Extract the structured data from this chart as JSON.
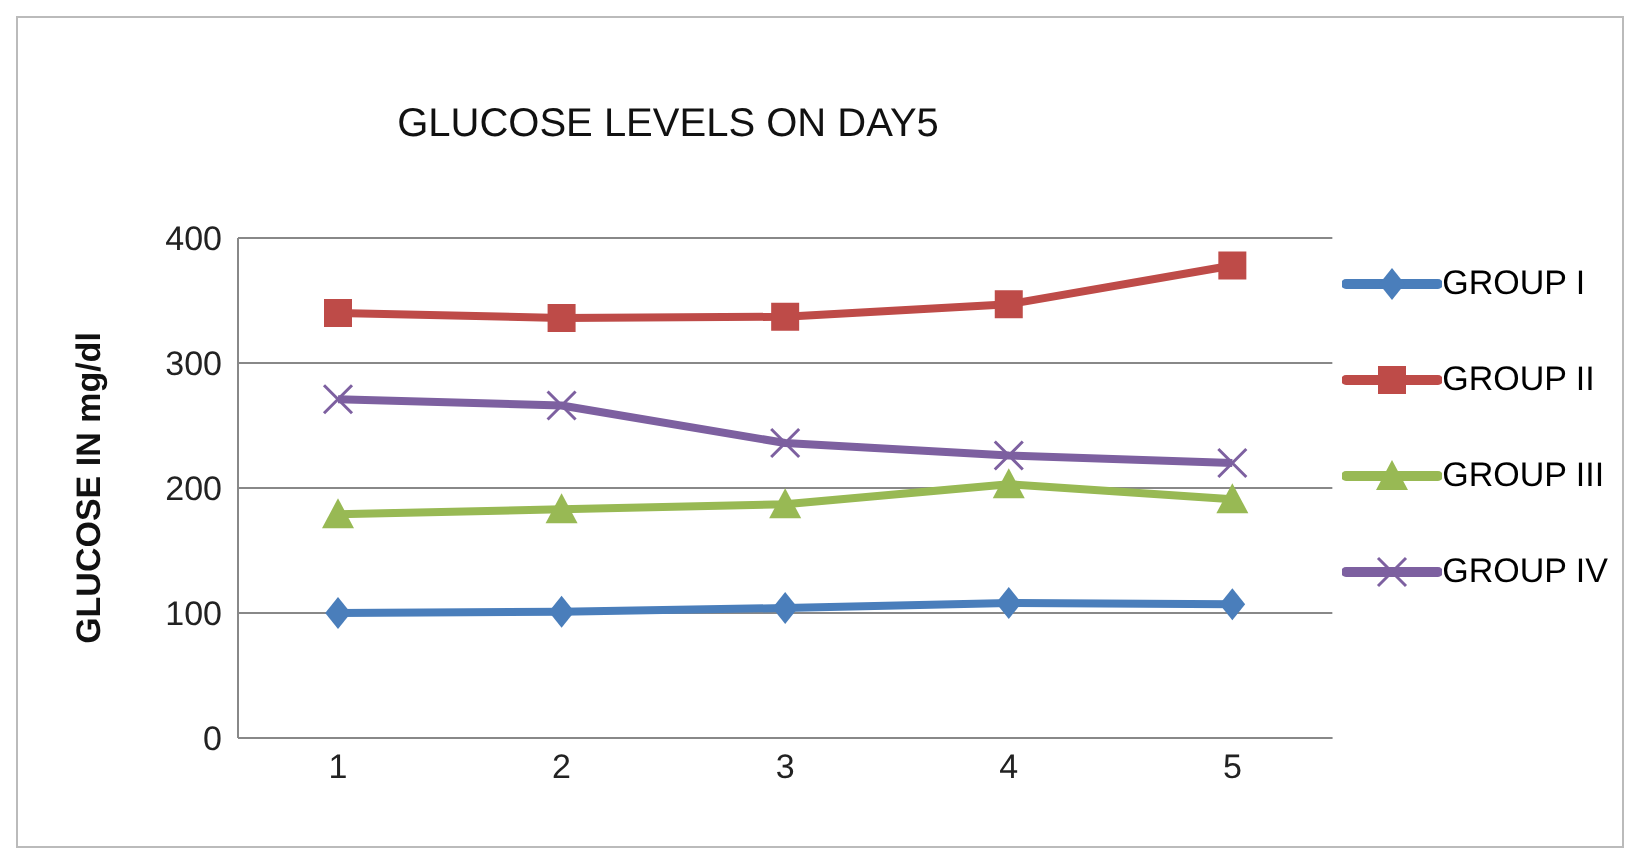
{
  "chart_data": {
    "type": "line",
    "title": "GLUCOSE LEVELS ON DAY5",
    "ylabel": "GLUCOSE IN mg/dl",
    "categories": [
      "1",
      "2",
      "3",
      "4",
      "5"
    ],
    "ylim": [
      0,
      400
    ],
    "yticks": [
      0,
      100,
      200,
      300,
      400
    ],
    "grid": "y",
    "legend": "right",
    "series": [
      {
        "name": "GROUP I",
        "color": "#4a7ebb",
        "marker": "diamond",
        "values": [
          100,
          101,
          104,
          108,
          107
        ]
      },
      {
        "name": "GROUP II",
        "color": "#be4b48",
        "marker": "square",
        "values": [
          340,
          336,
          337,
          347,
          378
        ]
      },
      {
        "name": "GROUP III",
        "color": "#98b954",
        "marker": "triangle",
        "values": [
          179,
          183,
          187,
          203,
          191
        ]
      },
      {
        "name": "GROUP IV",
        "color": "#7d60a0",
        "marker": "cross",
        "values": [
          271,
          266,
          236,
          226,
          220
        ]
      }
    ]
  }
}
